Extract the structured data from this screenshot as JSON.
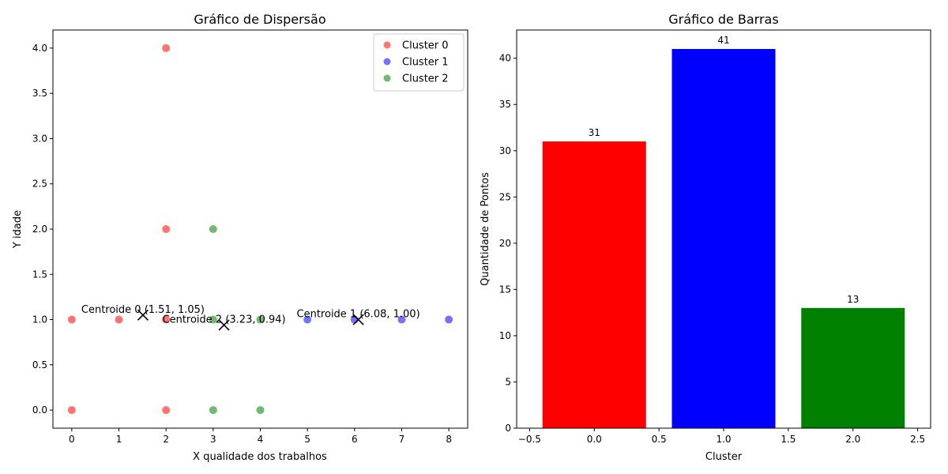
{
  "chart_data": [
    {
      "type": "scatter",
      "title": "Gráfico de Dispersão",
      "xlabel": "X qualidade dos trabalhos",
      "ylabel": "Y idade",
      "xlim": [
        -0.4,
        8.4
      ],
      "ylim": [
        -0.2,
        4.2
      ],
      "xticks": [
        "0",
        "1",
        "2",
        "3",
        "4",
        "5",
        "6",
        "7",
        "8"
      ],
      "yticks": [
        "0.0",
        "0.5",
        "1.0",
        "1.5",
        "2.0",
        "2.5",
        "3.0",
        "3.5",
        "4.0"
      ],
      "grid": false,
      "legend_position": "top-right",
      "series": [
        {
          "name": "Cluster 0",
          "color": "#ff0000",
          "points": [
            [
              0,
              0
            ],
            [
              0,
              1
            ],
            [
              1,
              1
            ],
            [
              2,
              0
            ],
            [
              2,
              1
            ],
            [
              2,
              2
            ],
            [
              2,
              4
            ]
          ]
        },
        {
          "name": "Cluster 1",
          "color": "#0000ff",
          "points": [
            [
              5,
              1
            ],
            [
              6,
              1
            ],
            [
              7,
              1
            ],
            [
              8,
              1
            ]
          ]
        },
        {
          "name": "Cluster 2",
          "color": "#008000",
          "points": [
            [
              3,
              0
            ],
            [
              3,
              1
            ],
            [
              3,
              2
            ],
            [
              4,
              0
            ],
            [
              4,
              1
            ]
          ]
        }
      ],
      "centroids": [
        {
          "x": 1.51,
          "y": 1.05,
          "label": "Centroide 0 (1.51, 1.05)"
        },
        {
          "x": 6.08,
          "y": 1.0,
          "label": "Centroide 1 (6.08, 1.00)"
        },
        {
          "x": 3.23,
          "y": 0.94,
          "label": "Centroide 2 (3.23, 0.94)"
        }
      ]
    },
    {
      "type": "bar",
      "title": "Gráfico de Barras",
      "xlabel": "Cluster",
      "ylabel": "Quantidade de Pontos",
      "xlim": [
        -0.6,
        2.6
      ],
      "ylim": [
        0,
        43.05
      ],
      "xticks": [
        "−0.5",
        "0.0",
        "0.5",
        "1.0",
        "1.5",
        "2.0",
        "2.5"
      ],
      "yticks": [
        "0",
        "5",
        "10",
        "15",
        "20",
        "25",
        "30",
        "35",
        "40"
      ],
      "grid": false,
      "categories": [
        0,
        1,
        2
      ],
      "values": [
        31,
        41,
        13
      ],
      "value_labels": [
        "31",
        "41",
        "13"
      ],
      "colors": [
        "#ff0000",
        "#0000ff",
        "#008000"
      ]
    }
  ]
}
